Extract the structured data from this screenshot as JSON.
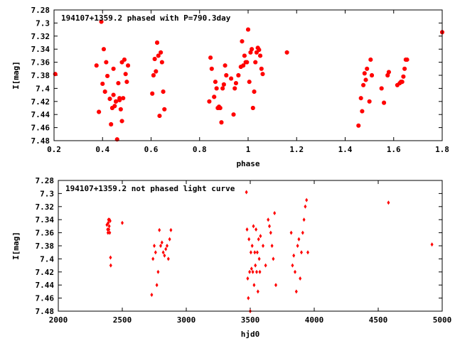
{
  "chart_data": [
    {
      "type": "scatter",
      "title": "194107+1359.2 phased with P=790.3day",
      "xlabel": "phase",
      "ylabel": "I[mag]",
      "xlim": [
        0.2,
        1.8
      ],
      "ylim": [
        7.28,
        7.48
      ],
      "y_inverted": true,
      "grid": false,
      "marker_color": "#ff0000",
      "marker_shape": "star",
      "xticks": [
        "0.2",
        "0.4",
        "0.6",
        "0.8",
        "1",
        "1.2",
        "1.4",
        "1.6",
        "1.8"
      ],
      "yticks": [
        "7.28",
        "7.3",
        "7.32",
        "7.34",
        "7.36",
        "7.38",
        "7.4",
        "7.42",
        "7.44",
        "7.46",
        "7.48"
      ],
      "series": [
        {
          "x": [
            0.205,
            0.375,
            0.385,
            0.395,
            0.4,
            0.405,
            0.41,
            0.415,
            0.42,
            0.43,
            0.435,
            0.44,
            0.445,
            0.45,
            0.455,
            0.46,
            0.465,
            0.47,
            0.475,
            0.48,
            0.485,
            0.49,
            0.495,
            0.5,
            0.505,
            0.445,
            0.455,
            0.47,
            0.48,
            0.605,
            0.61,
            0.615,
            0.62,
            0.625,
            0.63,
            0.635,
            0.64,
            0.645,
            0.65,
            0.655,
            0.84,
            0.845,
            0.85,
            0.86,
            0.865,
            0.87,
            0.875,
            0.88,
            0.885,
            0.89,
            0.895,
            0.9,
            0.905,
            0.91,
            0.93,
            0.94,
            0.945,
            0.95,
            0.96,
            0.97,
            0.975,
            0.98,
            0.985,
            0.99,
            0.995,
            1.0,
            1.005,
            1.01,
            1.015,
            1.02,
            1.025,
            1.03,
            1.035,
            1.04,
            1.045,
            1.05,
            1.055,
            1.06,
            1.16,
            1.455,
            1.465,
            1.47,
            1.475,
            1.48,
            1.485,
            1.49,
            1.5,
            1.505,
            1.51,
            1.55,
            1.56,
            1.575,
            1.58,
            1.615,
            1.625,
            1.63,
            1.635,
            1.64,
            1.645,
            1.65,
            1.655,
            1.8
          ],
          "y": [
            7.378,
            7.365,
            7.436,
            7.298,
            7.393,
            7.34,
            7.405,
            7.36,
            7.381,
            7.416,
            7.455,
            7.43,
            7.37,
            7.427,
            7.42,
            7.478,
            7.392,
            7.418,
            7.432,
            7.45,
            7.415,
            7.356,
            7.378,
            7.39,
            7.365,
            7.41,
            7.42,
            7.415,
            7.36,
            7.408,
            7.38,
            7.355,
            7.374,
            7.33,
            7.35,
            7.442,
            7.345,
            7.36,
            7.405,
            7.432,
            7.42,
            7.353,
            7.37,
            7.413,
            7.39,
            7.4,
            7.43,
            7.428,
            7.43,
            7.452,
            7.4,
            7.394,
            7.365,
            7.38,
            7.385,
            7.44,
            7.4,
            7.392,
            7.38,
            7.367,
            7.328,
            7.365,
            7.35,
            7.36,
            7.36,
            7.31,
            7.39,
            7.345,
            7.34,
            7.43,
            7.405,
            7.36,
            7.345,
            7.338,
            7.341,
            7.35,
            7.37,
            7.378,
            7.345,
            7.457,
            7.415,
            7.435,
            7.395,
            7.377,
            7.387,
            7.37,
            7.42,
            7.356,
            7.38,
            7.4,
            7.422,
            7.38,
            7.375,
            7.395,
            7.392,
            7.39,
            7.39,
            7.382,
            7.37,
            7.356,
            7.356,
            7.314
          ]
        }
      ]
    },
    {
      "type": "scatter",
      "title": "194107+1359.2 not phased light curve",
      "xlabel": "hjd0",
      "ylabel": "I[mag]",
      "xlim": [
        2000,
        5000
      ],
      "ylim": [
        7.28,
        7.48
      ],
      "y_inverted": true,
      "grid": false,
      "marker_color": "#ff0000",
      "marker_shape": "diamond",
      "xticks": [
        "2000",
        "2500",
        "3000",
        "3500",
        "4000",
        "4500",
        "5000"
      ],
      "yticks": [
        "7.28",
        "7.3",
        "7.32",
        "7.34",
        "7.36",
        "7.38",
        "7.4",
        "7.42",
        "7.44",
        "7.46",
        "7.48"
      ],
      "series": [
        {
          "x": [
            2380,
            2385,
            2390,
            2392,
            2395,
            2398,
            2400,
            2402,
            2405,
            2408,
            2410,
            2388,
            2500,
            2730,
            2740,
            2750,
            2760,
            2770,
            2780,
            2790,
            2800,
            2810,
            2820,
            2830,
            2840,
            2850,
            2860,
            2870,
            2880,
            3470,
            3475,
            3480,
            3485,
            3490,
            3495,
            3500,
            3505,
            3510,
            3515,
            3520,
            3525,
            3530,
            3535,
            3540,
            3545,
            3550,
            3555,
            3560,
            3565,
            3570,
            3575,
            3580,
            3600,
            3620,
            3640,
            3650,
            3660,
            3670,
            3680,
            3690,
            3700,
            3820,
            3830,
            3840,
            3850,
            3860,
            3870,
            3880,
            3890,
            3900,
            3910,
            3920,
            3930,
            3940,
            3950,
            4580,
            4920
          ],
          "y": [
            7.348,
            7.355,
            7.345,
            7.34,
            7.355,
            7.35,
            7.34,
            7.36,
            7.342,
            7.398,
            7.41,
            7.36,
            7.345,
            7.455,
            7.4,
            7.38,
            7.39,
            7.44,
            7.42,
            7.356,
            7.38,
            7.375,
            7.39,
            7.395,
            7.385,
            7.38,
            7.4,
            7.37,
            7.356,
            7.298,
            7.355,
            7.43,
            7.46,
            7.37,
            7.42,
            7.48,
            7.39,
            7.415,
            7.38,
            7.42,
            7.35,
            7.44,
            7.39,
            7.41,
            7.355,
            7.42,
            7.39,
            7.45,
            7.37,
            7.4,
            7.42,
            7.365,
            7.38,
            7.41,
            7.34,
            7.35,
            7.36,
            7.38,
            7.4,
            7.33,
            7.44,
            7.36,
            7.41,
            7.395,
            7.42,
            7.45,
            7.38,
            7.37,
            7.43,
            7.39,
            7.36,
            7.34,
            7.32,
            7.31,
            7.39,
            7.314,
            7.378
          ]
        }
      ]
    }
  ]
}
